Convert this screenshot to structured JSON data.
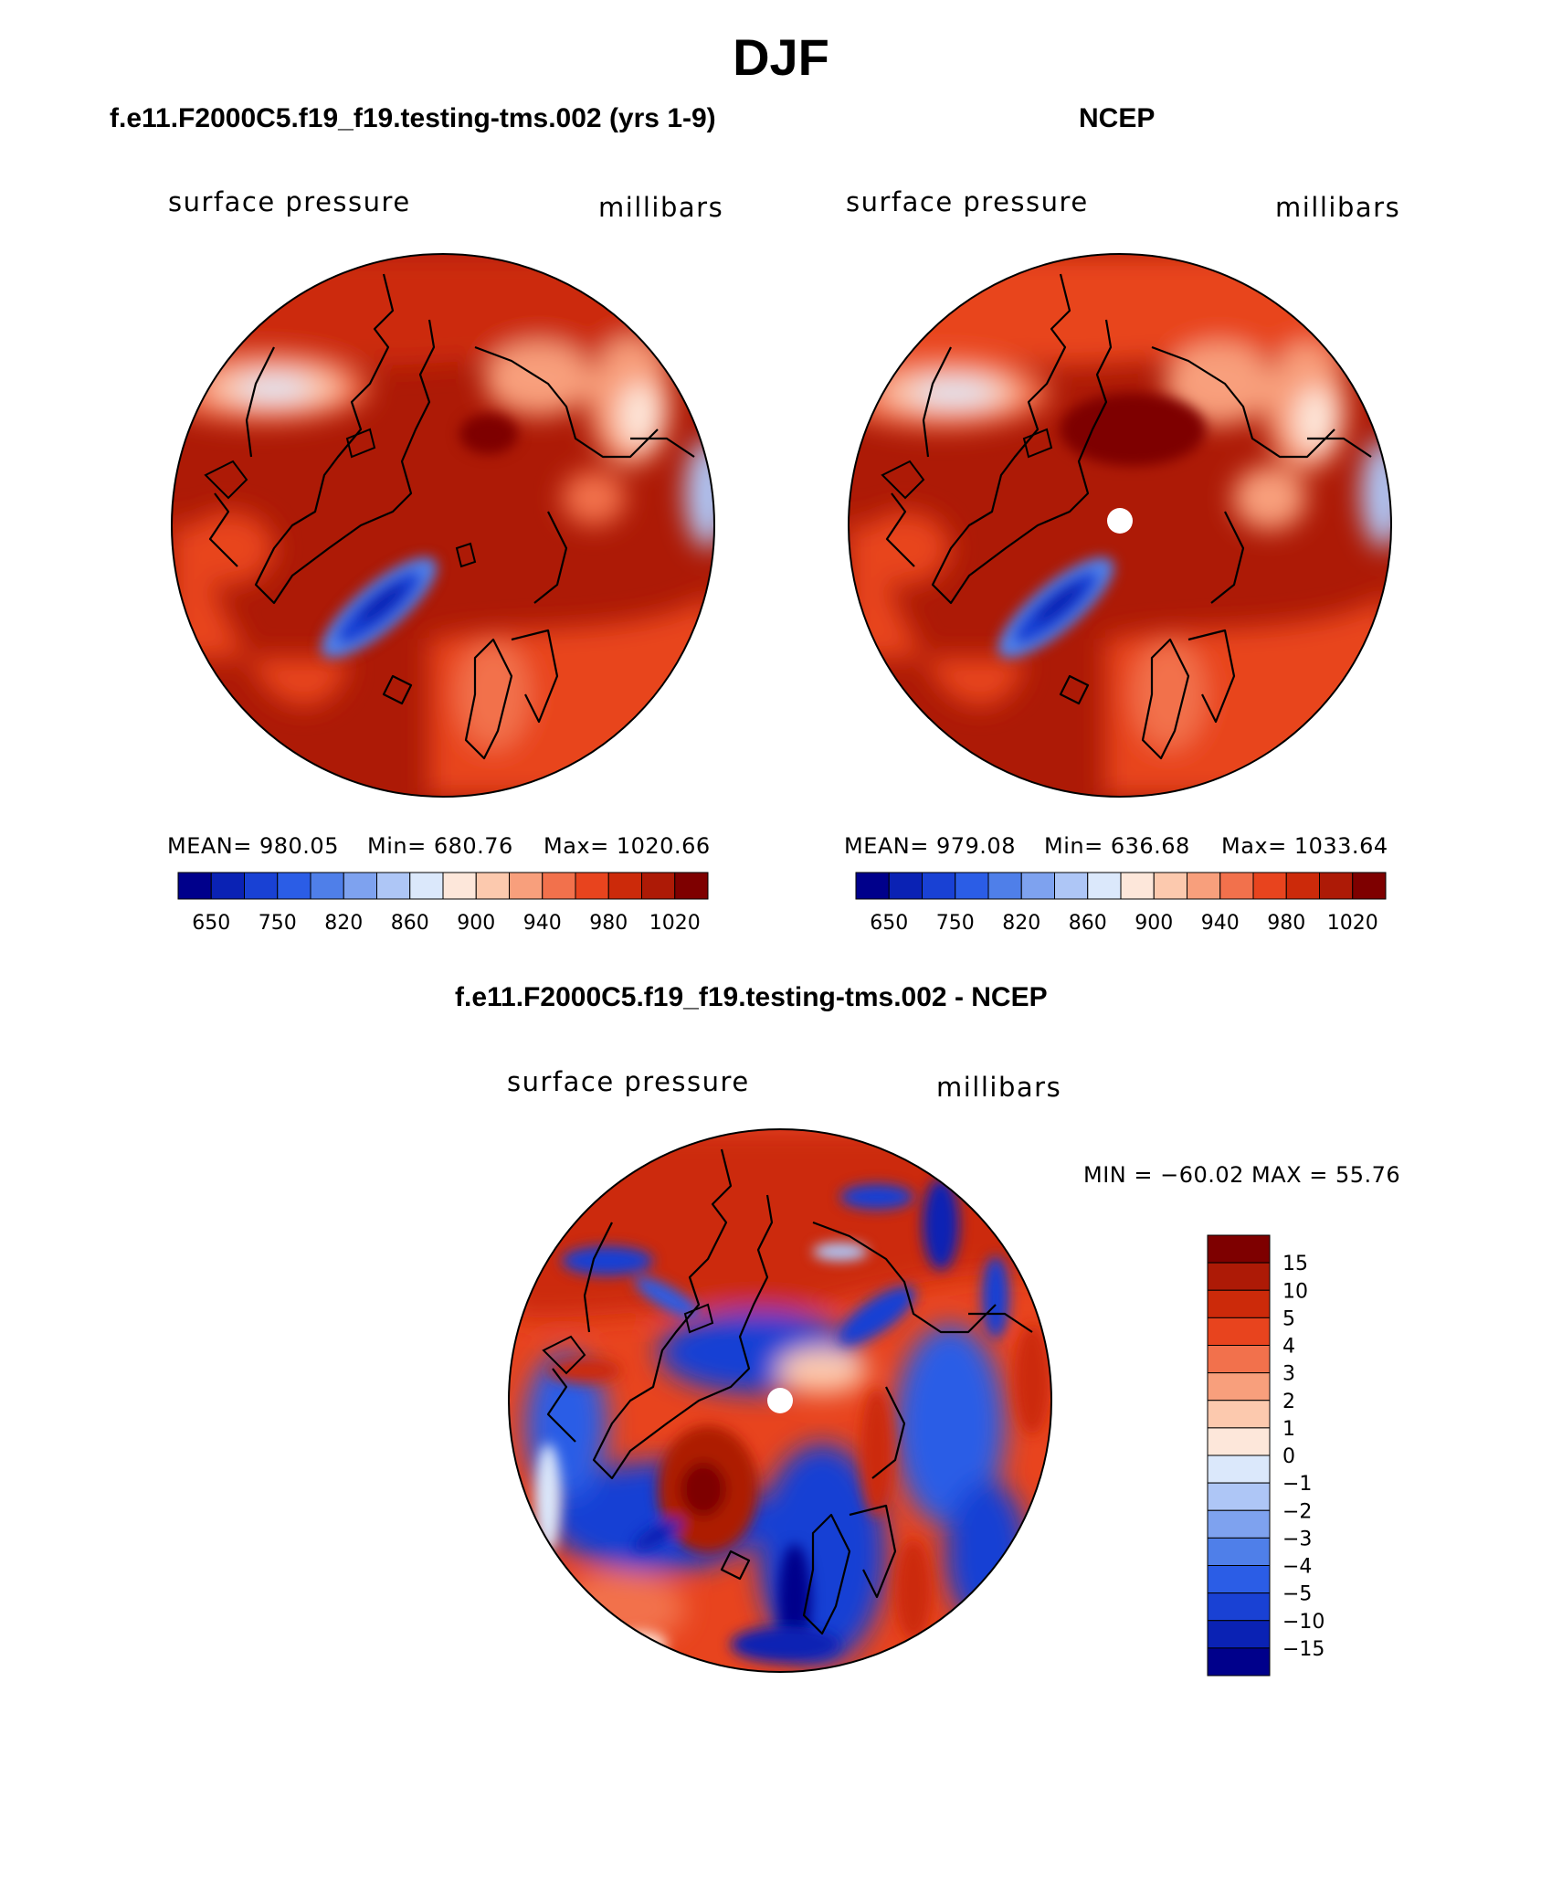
{
  "figure": {
    "season": "DJF"
  },
  "colors": {
    "pressure_scale": [
      "#00008b",
      "#0a22b4",
      "#1941d4",
      "#2b5de6",
      "#4f7fe9",
      "#7ea2ef",
      "#aec6f6",
      "#dbe8fb",
      "#fde7da",
      "#fcc9ae",
      "#f89f7c",
      "#f2714c",
      "#e8441e",
      "#cc2a0a",
      "#ad1a06",
      "#7e0000"
    ],
    "diff_scale": [
      "#00008b",
      "#0a22b4",
      "#1941d4",
      "#2b5de6",
      "#4f7fe9",
      "#7ea2ef",
      "#aec6f6",
      "#dbe8fb",
      "#fde7da",
      "#fcc9ae",
      "#f89f7c",
      "#f2714c",
      "#e8441e",
      "#cc2a0a",
      "#ad1a06",
      "#7e0000"
    ],
    "coast": "#000000"
  },
  "chart_data": [
    {
      "type": "heatmap",
      "projection": "north-polar-stereographic",
      "title": "f.e11.F2000C5.f19_f19.testing-tms.002 (yrs 1-9)",
      "left_label": "surface pressure",
      "right_label": "millibars",
      "stats": {
        "mean_text": "MEAN= 980.05",
        "min_text": "Min= 680.76",
        "max_text": "Max= 1020.66",
        "mean": 980.05,
        "min": 680.76,
        "max": 1020.66
      },
      "colorbar": {
        "orientation": "horizontal",
        "tick_labels": [
          "650",
          "750",
          "820",
          "860",
          "900",
          "940",
          "980",
          "1020"
        ],
        "levels": 16
      }
    },
    {
      "type": "heatmap",
      "projection": "north-polar-stereographic",
      "title": "NCEP",
      "left_label": "surface pressure",
      "right_label": "millibars",
      "stats": {
        "mean_text": "MEAN= 979.08",
        "min_text": "Min= 636.68",
        "max_text": "Max= 1033.64",
        "mean": 979.08,
        "min": 636.68,
        "max": 1033.64
      },
      "colorbar": {
        "orientation": "horizontal",
        "tick_labels": [
          "650",
          "750",
          "820",
          "860",
          "900",
          "940",
          "980",
          "1020"
        ],
        "levels": 16
      }
    },
    {
      "type": "heatmap",
      "projection": "north-polar-stereographic",
      "title": "f.e11.F2000C5.f19_f19.testing-tms.002 - NCEP",
      "left_label": "surface pressure",
      "right_label": "millibars",
      "stats": {
        "minmax_text": "MIN = −60.02 MAX =  55.76",
        "min": -60.02,
        "max": 55.76
      },
      "colorbar": {
        "orientation": "vertical",
        "tick_labels": [
          "15",
          "10",
          "5",
          "4",
          "3",
          "2",
          "1",
          "0",
          "−1",
          "−2",
          "−3",
          "−4",
          "−5",
          "−10",
          "−15"
        ],
        "levels": 16
      }
    }
  ]
}
